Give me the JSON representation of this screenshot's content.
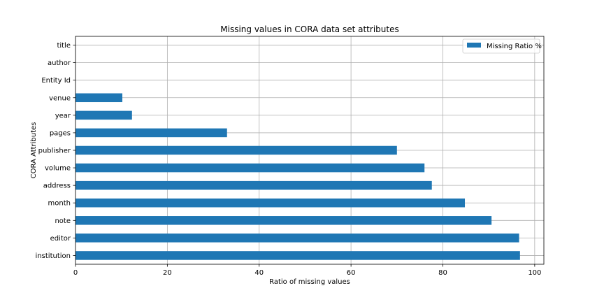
{
  "chart_data": {
    "type": "bar",
    "orientation": "horizontal",
    "title": "Missing values in CORA data set attributes",
    "xlabel": "Ratio of missing values",
    "ylabel": "CORA Attributes",
    "xlim": [
      0,
      102
    ],
    "xticks": [
      0,
      20,
      40,
      60,
      80,
      100
    ],
    "grid": true,
    "legend_position": "top-right",
    "categories": [
      "institution",
      "editor",
      "note",
      "month",
      "address",
      "volume",
      "publisher",
      "pages",
      "year",
      "venue",
      "Entity Id",
      "author",
      "title"
    ],
    "series": [
      {
        "name": "Missing Ratio %",
        "color": "#1f77b4",
        "values": [
          96.8,
          96.6,
          90.6,
          84.8,
          77.6,
          76.0,
          70.0,
          33.0,
          12.3,
          10.2,
          0,
          0,
          0
        ]
      }
    ]
  }
}
